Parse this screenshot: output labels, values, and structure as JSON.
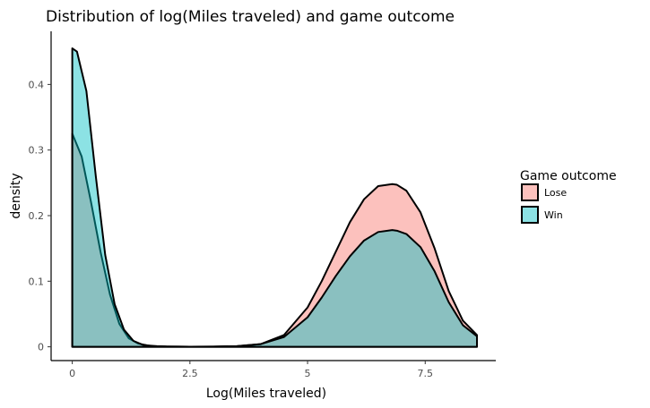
{
  "chart_data": {
    "type": "area",
    "title": "Distribution of log(Miles traveled) and game outcome",
    "xlabel": "Log(Miles traveled)",
    "ylabel": "density",
    "xlim": [
      -0.45,
      9.0
    ],
    "ylim": [
      -0.021,
      0.481
    ],
    "x_ticks": [
      0,
      2.5,
      5,
      7.5
    ],
    "x_tick_labels": [
      "0",
      "2.5",
      "5",
      "7.5"
    ],
    "y_ticks": [
      0,
      0.1,
      0.2,
      0.3,
      0.4
    ],
    "y_tick_labels": [
      "0",
      "0.1",
      "0.2",
      "0.3",
      "0.4"
    ],
    "grid": false,
    "legend": {
      "title": "Game outcome",
      "placement": "right"
    },
    "series": [
      {
        "name": "Lose",
        "fill": "#F8766D",
        "x": [
          0,
          0.2,
          0.4,
          0.6,
          0.8,
          1.0,
          1.2,
          1.4,
          1.6,
          1.8,
          2.0,
          2.5,
          3.0,
          3.5,
          4.0,
          4.5,
          5.0,
          5.3,
          5.6,
          5.9,
          6.2,
          6.5,
          6.8,
          6.9,
          7.1,
          7.4,
          7.7,
          8.0,
          8.3,
          8.6
        ],
        "y": [
          0.325,
          0.29,
          0.22,
          0.145,
          0.08,
          0.035,
          0.013,
          0.005,
          0.002,
          0.001,
          0.0005,
          0.0002,
          0.0003,
          0.001,
          0.004,
          0.018,
          0.06,
          0.1,
          0.145,
          0.19,
          0.225,
          0.245,
          0.248,
          0.247,
          0.238,
          0.205,
          0.15,
          0.085,
          0.04,
          0.018
        ]
      },
      {
        "name": "Win",
        "fill": "#00BFC4",
        "x": [
          0,
          0.1,
          0.3,
          0.5,
          0.7,
          0.9,
          1.1,
          1.3,
          1.5,
          1.7,
          2.0,
          2.5,
          3.0,
          3.5,
          4.0,
          4.5,
          5.0,
          5.3,
          5.6,
          5.9,
          6.2,
          6.5,
          6.8,
          6.9,
          7.1,
          7.4,
          7.7,
          8.0,
          8.3,
          8.6
        ],
        "y": [
          0.455,
          0.45,
          0.39,
          0.26,
          0.14,
          0.065,
          0.026,
          0.009,
          0.003,
          0.001,
          0.0005,
          0.0002,
          0.0003,
          0.001,
          0.004,
          0.015,
          0.045,
          0.075,
          0.108,
          0.138,
          0.162,
          0.175,
          0.178,
          0.177,
          0.172,
          0.152,
          0.115,
          0.068,
          0.033,
          0.016
        ]
      }
    ]
  }
}
